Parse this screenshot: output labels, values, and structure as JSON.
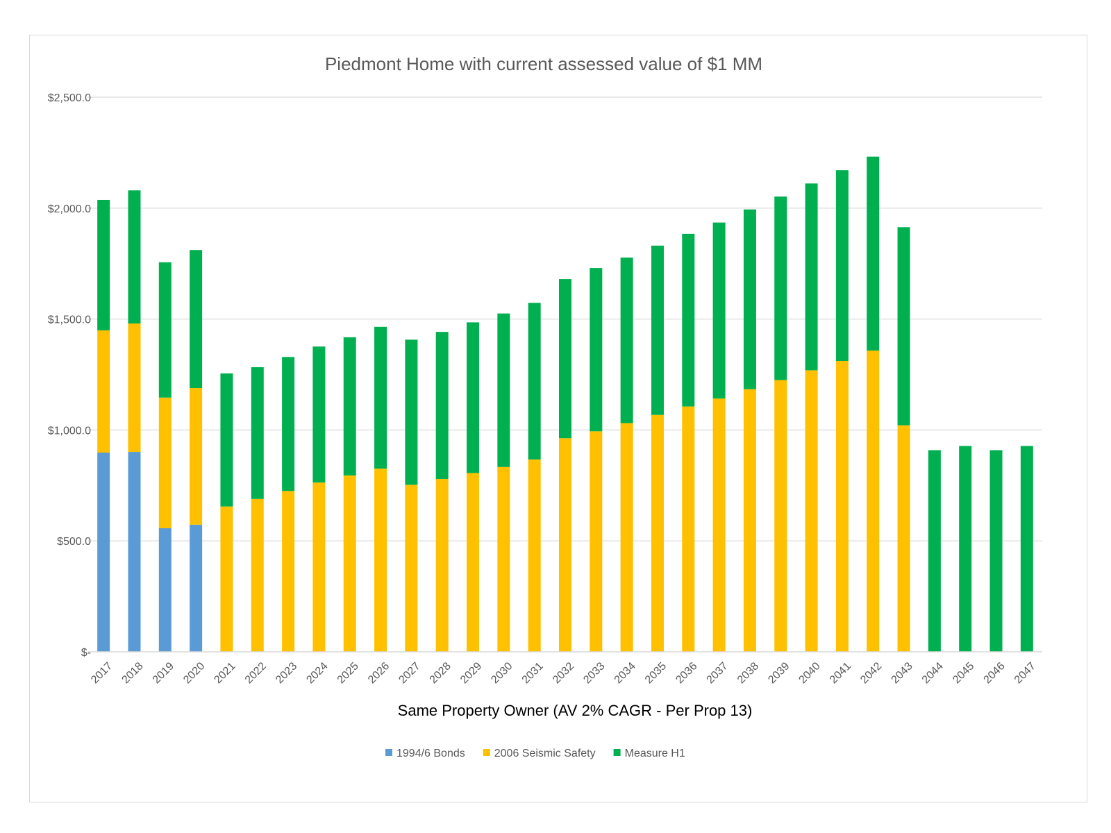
{
  "chart_data": {
    "type": "bar",
    "stacked": true,
    "title": "Piedmont Home with current assessed value of $1 MM",
    "xlabel": "Same Property Owner (AV 2% CAGR - Per Prop 13)",
    "ylabel": "",
    "ylim": [
      0,
      2500
    ],
    "yticks": [
      {
        "value": 0,
        "label": "$-"
      },
      {
        "value": 500,
        "label": "$500.0"
      },
      {
        "value": 1000,
        "label": "$1,000.0"
      },
      {
        "value": 1500,
        "label": "$1,500.0"
      },
      {
        "value": 2000,
        "label": "$2,000.0"
      },
      {
        "value": 2500,
        "label": "$2,500.0"
      }
    ],
    "grid": true,
    "legend_position": "bottom",
    "categories": [
      "2017",
      "2018",
      "2019",
      "2020",
      "2021",
      "2022",
      "2023",
      "2024",
      "2025",
      "2026",
      "2027",
      "2028",
      "2029",
      "2030",
      "2031",
      "2032",
      "2033",
      "2034",
      "2035",
      "2036",
      "2037",
      "2038",
      "2039",
      "2040",
      "2041",
      "2042",
      "2043",
      "2044",
      "2045",
      "2046",
      "2047"
    ],
    "series": [
      {
        "name": "1994/6 Bonds",
        "color": "#5b9bd5",
        "values": [
          898,
          901,
          557,
          573,
          0,
          0,
          0,
          0,
          0,
          0,
          0,
          0,
          0,
          0,
          0,
          0,
          0,
          0,
          0,
          0,
          0,
          0,
          0,
          0,
          0,
          0,
          0,
          0,
          0,
          0,
          0
        ]
      },
      {
        "name": "2006 Seismic Safety",
        "color": "#ffc000",
        "values": [
          551,
          579,
          589,
          616,
          655,
          689,
          725,
          763,
          795,
          826,
          753,
          779,
          806,
          833,
          867,
          963,
          994,
          1031,
          1068,
          1106,
          1142,
          1184,
          1225,
          1269,
          1311,
          1358,
          1021,
          0,
          0,
          0,
          0
        ]
      },
      {
        "name": "Measure H1",
        "color": "#00b050",
        "values": [
          588,
          600,
          610,
          622,
          600,
          594,
          604,
          613,
          623,
          639,
          654,
          663,
          679,
          692,
          706,
          717,
          736,
          746,
          763,
          778,
          793,
          810,
          827,
          842,
          860,
          874,
          893,
          909,
          928,
          909,
          928
        ]
      }
    ]
  }
}
